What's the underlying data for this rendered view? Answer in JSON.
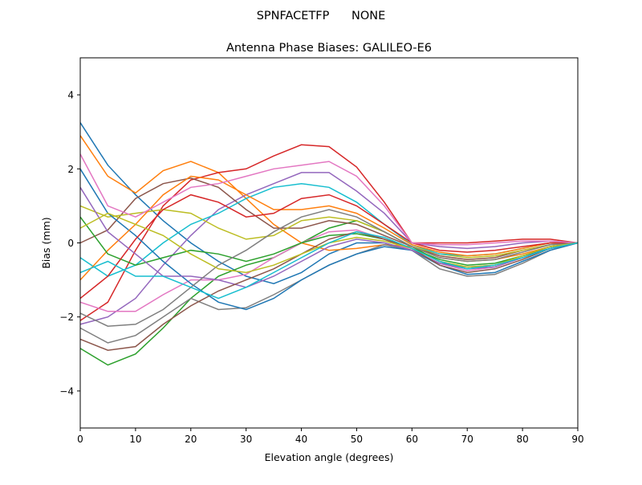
{
  "chart_data": {
    "type": "line",
    "suptitle": "SPNFACETFP      NONE",
    "title": "Antenna Phase Biases: GALILEO-E6",
    "xlabel": "Elevation angle (degrees)",
    "ylabel": "Bias (mm)",
    "xlim": [
      0,
      90
    ],
    "ylim": [
      -5,
      5
    ],
    "xticks": [
      0,
      10,
      20,
      30,
      40,
      50,
      60,
      70,
      80,
      90
    ],
    "yticks": [
      -4,
      -2,
      0,
      2,
      4
    ],
    "grid": false,
    "legend": "none",
    "colors": [
      "#1f77b4",
      "#ff7f0e",
      "#2ca02c",
      "#d62728",
      "#9467bd",
      "#8c564b",
      "#e377c2",
      "#7f7f7f",
      "#bcbd22",
      "#17becf"
    ],
    "x": [
      0,
      5,
      10,
      15,
      20,
      25,
      30,
      35,
      40,
      45,
      50,
      55,
      60,
      65,
      70,
      75,
      80,
      85,
      90
    ],
    "series": [
      {
        "values": [
          3.25,
          2.1,
          1.3,
          0.6,
          0.0,
          -0.5,
          -0.9,
          -1.1,
          -0.8,
          -0.3,
          0.0,
          0.0,
          -0.2,
          -0.55,
          -0.65,
          -0.6,
          -0.35,
          -0.15,
          0
        ]
      },
      {
        "values": [
          2.9,
          1.8,
          1.35,
          1.95,
          2.2,
          1.9,
          1.2,
          0.5,
          0.0,
          -0.2,
          -0.15,
          -0.05,
          -0.1,
          -0.4,
          -0.5,
          -0.45,
          -0.3,
          -0.1,
          0
        ]
      },
      {
        "values": [
          -2.85,
          -3.3,
          -3.0,
          -2.3,
          -1.5,
          -0.9,
          -0.6,
          -0.4,
          0.0,
          0.4,
          0.6,
          0.3,
          -0.1,
          -0.5,
          -0.7,
          -0.6,
          -0.4,
          -0.15,
          0
        ]
      },
      {
        "values": [
          -2.1,
          -1.6,
          -0.2,
          1.0,
          1.7,
          1.9,
          2.0,
          2.35,
          2.65,
          2.6,
          2.05,
          1.1,
          0.0,
          0.0,
          0.0,
          0.05,
          0.1,
          0.1,
          0
        ]
      },
      {
        "values": [
          -2.2,
          -2.0,
          -1.5,
          -0.6,
          0.2,
          0.9,
          1.3,
          1.6,
          1.9,
          1.9,
          1.4,
          0.8,
          0.0,
          -0.1,
          -0.15,
          -0.1,
          0.0,
          0.05,
          0
        ]
      },
      {
        "values": [
          0.0,
          0.35,
          1.2,
          1.6,
          1.75,
          1.5,
          0.9,
          0.4,
          0.4,
          0.6,
          0.5,
          0.2,
          -0.1,
          -0.35,
          -0.45,
          -0.4,
          -0.2,
          -0.05,
          0
        ]
      },
      {
        "values": [
          -1.6,
          -1.85,
          -1.85,
          -1.4,
          -1.0,
          -1.0,
          -0.85,
          -0.4,
          0.0,
          0.3,
          0.35,
          0.1,
          -0.2,
          -0.55,
          -0.75,
          -0.65,
          -0.4,
          -0.15,
          0
        ]
      },
      {
        "values": [
          -2.3,
          -2.7,
          -2.5,
          -2.0,
          -1.5,
          -1.8,
          -1.75,
          -1.4,
          -1.0,
          -0.6,
          -0.3,
          -0.05,
          -0.2,
          -0.7,
          -0.9,
          -0.85,
          -0.55,
          -0.2,
          0
        ]
      },
      {
        "values": [
          1.0,
          0.7,
          0.8,
          0.9,
          0.8,
          0.4,
          0.1,
          0.2,
          0.6,
          0.7,
          0.6,
          0.3,
          -0.1,
          -0.3,
          -0.4,
          -0.35,
          -0.2,
          -0.05,
          0
        ]
      },
      {
        "values": [
          -0.4,
          -0.9,
          -0.6,
          0.0,
          0.5,
          0.8,
          1.2,
          1.5,
          1.6,
          1.5,
          1.1,
          0.5,
          -0.05,
          -0.3,
          -0.35,
          -0.3,
          -0.15,
          0.0,
          0
        ]
      },
      {
        "values": [
          2.0,
          0.8,
          0.2,
          -0.5,
          -1.1,
          -1.6,
          -1.8,
          -1.5,
          -1.0,
          -0.6,
          -0.3,
          -0.1,
          -0.2,
          -0.6,
          -0.85,
          -0.8,
          -0.5,
          -0.2,
          0
        ]
      },
      {
        "values": [
          -1.0,
          -0.2,
          0.5,
          1.3,
          1.8,
          1.7,
          1.3,
          0.9,
          0.9,
          1.0,
          0.8,
          0.4,
          -0.05,
          -0.25,
          -0.35,
          -0.3,
          -0.15,
          0.0,
          0
        ]
      },
      {
        "values": [
          0.7,
          -0.3,
          -0.6,
          -0.4,
          -0.2,
          -0.3,
          -0.5,
          -0.3,
          0.0,
          0.2,
          0.25,
          0.1,
          -0.15,
          -0.45,
          -0.6,
          -0.55,
          -0.35,
          -0.1,
          0
        ]
      },
      {
        "values": [
          -1.5,
          -0.9,
          0.1,
          0.9,
          1.3,
          1.1,
          0.7,
          0.8,
          1.2,
          1.3,
          1.0,
          0.5,
          0.0,
          -0.2,
          -0.25,
          -0.2,
          -0.1,
          0.0,
          0
        ]
      },
      {
        "values": [
          1.5,
          0.3,
          -0.3,
          -0.9,
          -0.9,
          -1.0,
          -1.2,
          -0.9,
          -0.5,
          -0.1,
          0.1,
          0.0,
          -0.2,
          -0.55,
          -0.7,
          -0.65,
          -0.4,
          -0.15,
          0
        ]
      },
      {
        "values": [
          -2.6,
          -2.9,
          -2.8,
          -2.2,
          -1.7,
          -1.3,
          -1.0,
          -0.7,
          -0.3,
          0.1,
          0.3,
          0.1,
          -0.15,
          -0.6,
          -0.8,
          -0.7,
          -0.45,
          -0.15,
          0
        ]
      },
      {
        "values": [
          2.4,
          1.0,
          0.7,
          1.1,
          1.5,
          1.6,
          1.8,
          2.0,
          2.1,
          2.2,
          1.8,
          1.0,
          0.0,
          -0.05,
          -0.05,
          0.0,
          0.05,
          0.05,
          0
        ]
      },
      {
        "values": [
          -1.9,
          -2.25,
          -2.2,
          -1.8,
          -1.2,
          -0.6,
          -0.2,
          0.3,
          0.7,
          0.9,
          0.7,
          0.3,
          -0.1,
          -0.4,
          -0.5,
          -0.45,
          -0.25,
          -0.05,
          0
        ]
      },
      {
        "values": [
          0.4,
          0.8,
          0.5,
          0.2,
          -0.3,
          -0.7,
          -0.8,
          -0.6,
          -0.3,
          0.0,
          0.15,
          0.05,
          -0.15,
          -0.5,
          -0.65,
          -0.6,
          -0.35,
          -0.1,
          0
        ]
      },
      {
        "values": [
          -0.8,
          -0.5,
          -0.9,
          -0.9,
          -1.2,
          -1.5,
          -1.2,
          -0.8,
          -0.4,
          0.0,
          0.3,
          0.15,
          -0.15,
          -0.5,
          -0.7,
          -0.6,
          -0.4,
          -0.15,
          0
        ]
      }
    ]
  }
}
